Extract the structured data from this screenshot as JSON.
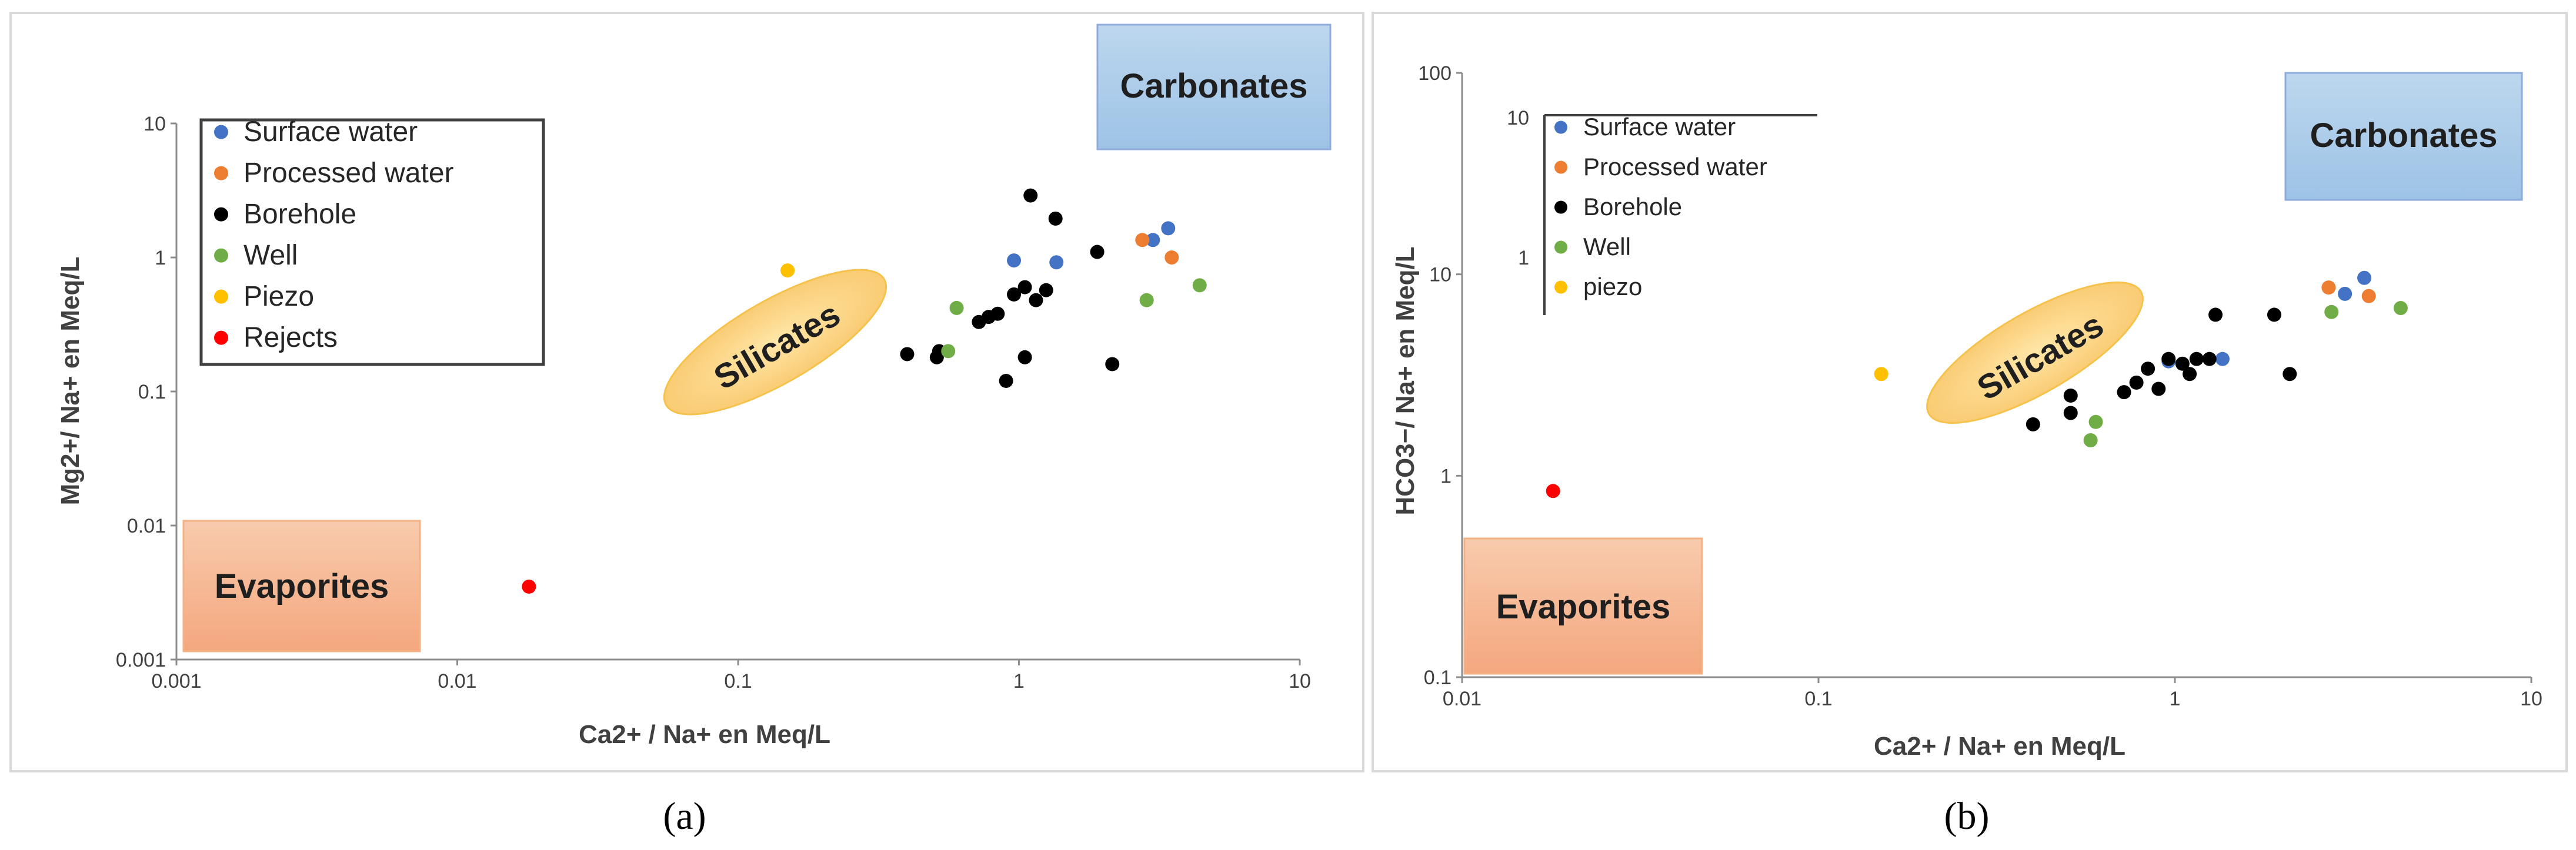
{
  "series_colors": {
    "Surface water": "#4472C4",
    "Processed water": "#ED7D31",
    "Borehole": "#000000",
    "Well": "#70AD47",
    "Piezo": "#FFC000",
    "Rejects": "#FF0000"
  },
  "chart_data": [
    {
      "type": "scatter",
      "panel_label": "(a)",
      "xlabel": "Ca2+ / Na+ en Meq/L",
      "ylabel": "Mg2+/ Na+ en Meq/L",
      "x_scale": "log",
      "y_scale": "log",
      "xlim": [
        0.001,
        10
      ],
      "ylim": [
        0.001,
        10
      ],
      "x_ticks": [
        "0.001",
        "0.01",
        "0.1",
        "1",
        "10"
      ],
      "y_ticks": [
        "0.001",
        "0.01",
        "0.1",
        "1",
        "10"
      ],
      "grid": false,
      "legend_position": "top-left",
      "legend": [
        "Surface water",
        "Processed water",
        "Borehole",
        "Well",
        "Piezo",
        "Rejects"
      ],
      "annotations": {
        "carbonates": "Carbonates",
        "silicates": "Silicates",
        "evaporites": "Evaporites"
      },
      "series": [
        {
          "name": "Surface water",
          "points": [
            [
              0.96,
              0.95
            ],
            [
              1.36,
              0.92
            ],
            [
              3.0,
              1.35
            ],
            [
              3.4,
              1.65
            ]
          ]
        },
        {
          "name": "Processed water",
          "points": [
            [
              2.75,
              1.35
            ],
            [
              3.5,
              1.0
            ]
          ]
        },
        {
          "name": "Borehole",
          "points": [
            [
              0.4,
              0.19
            ],
            [
              0.51,
              0.18
            ],
            [
              0.52,
              0.2
            ],
            [
              0.72,
              0.33
            ],
            [
              0.78,
              0.36
            ],
            [
              0.84,
              0.38
            ],
            [
              0.96,
              0.53
            ],
            [
              1.05,
              0.6
            ],
            [
              1.15,
              0.48
            ],
            [
              1.25,
              0.57
            ],
            [
              0.9,
              0.12
            ],
            [
              1.05,
              0.18
            ],
            [
              1.1,
              2.9
            ],
            [
              1.35,
              1.95
            ],
            [
              1.9,
              1.1
            ],
            [
              2.15,
              0.16
            ]
          ]
        },
        {
          "name": "Well",
          "points": [
            [
              0.56,
              0.2
            ],
            [
              0.6,
              0.42
            ],
            [
              2.85,
              0.48
            ],
            [
              4.4,
              0.62
            ]
          ]
        },
        {
          "name": "Piezo",
          "points": [
            [
              0.15,
              0.8
            ]
          ]
        },
        {
          "name": "Rejects",
          "points": [
            [
              0.018,
              0.0035
            ]
          ]
        }
      ]
    },
    {
      "type": "scatter",
      "panel_label": "(b)",
      "xlabel": "Ca2+ / Na+ en Meq/L",
      "ylabel": "HCO3−/ Na+ en Meq/L",
      "x_scale": "log",
      "y_scale": "log",
      "xlim": [
        0.01,
        10
      ],
      "ylim": [
        0.1,
        100
      ],
      "x_ticks": [
        "0.01",
        "0.1",
        "1",
        "10"
      ],
      "y_ticks": [
        "0.1",
        "1",
        "10",
        "100"
      ],
      "grid": false,
      "legend_position": "top-left",
      "legend": [
        "Surface water",
        "Processed water",
        "Borehole",
        "Well",
        "piezo"
      ],
      "legend_inset_ticks": [
        "10",
        "1"
      ],
      "annotations": {
        "carbonates": "Carbonates",
        "silicates": "Silicates",
        "evaporites": "Evaporites"
      },
      "series": [
        {
          "name": "Surface water",
          "points": [
            [
              0.96,
              3.7
            ],
            [
              1.36,
              3.8
            ],
            [
              3.0,
              8.0
            ],
            [
              3.4,
              9.6
            ]
          ]
        },
        {
          "name": "Processed water",
          "points": [
            [
              2.7,
              8.6
            ],
            [
              3.5,
              7.8
            ]
          ]
        },
        {
          "name": "Borehole",
          "points": [
            [
              0.4,
              1.8
            ],
            [
              0.51,
              2.5
            ],
            [
              0.51,
              2.05
            ],
            [
              0.72,
              2.6
            ],
            [
              0.78,
              2.9
            ],
            [
              0.84,
              3.4
            ],
            [
              0.9,
              2.7
            ],
            [
              0.96,
              3.8
            ],
            [
              1.05,
              3.6
            ],
            [
              1.1,
              3.2
            ],
            [
              1.15,
              3.8
            ],
            [
              1.25,
              3.8
            ],
            [
              1.3,
              6.3
            ],
            [
              1.9,
              6.3
            ],
            [
              2.1,
              3.2
            ]
          ]
        },
        {
          "name": "Well",
          "points": [
            [
              0.58,
              1.5
            ],
            [
              0.6,
              1.85
            ],
            [
              2.75,
              6.5
            ],
            [
              4.3,
              6.8
            ]
          ]
        },
        {
          "name": "piezo",
          "points": [
            [
              0.15,
              3.2
            ]
          ]
        },
        {
          "name": "Rejects",
          "points": [
            [
              0.018,
              0.84
            ]
          ]
        }
      ]
    }
  ]
}
